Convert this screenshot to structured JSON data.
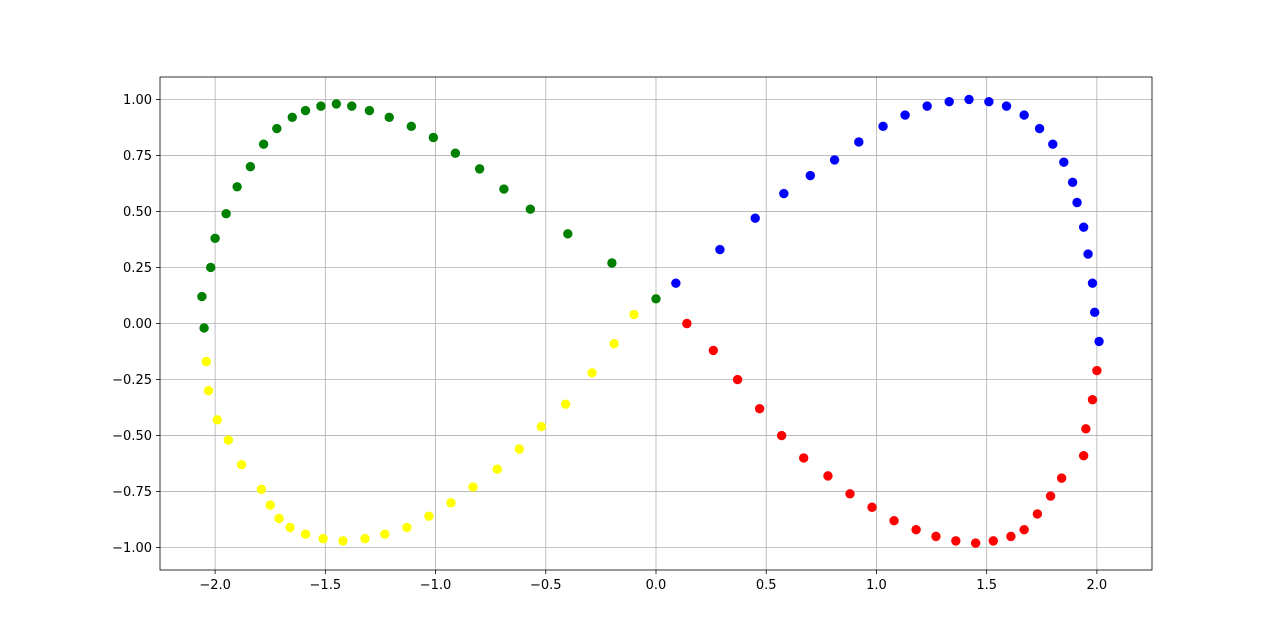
{
  "chart_data": {
    "type": "scatter",
    "title": "",
    "xlabel": "",
    "ylabel": "",
    "xlim": [
      -2.25,
      2.25
    ],
    "ylim": [
      -1.1,
      1.1
    ],
    "x_ticks": [
      -2.0,
      -1.5,
      -1.0,
      -0.5,
      0.0,
      0.5,
      1.0,
      1.5,
      2.0
    ],
    "x_tick_labels": [
      "−2.0",
      "−1.5",
      "−1.0",
      "−0.5",
      "0.0",
      "0.5",
      "1.0",
      "1.5",
      "2.0"
    ],
    "y_ticks": [
      1.0,
      0.75,
      0.5,
      0.25,
      0.0,
      -0.25,
      -0.5,
      -0.75,
      -1.0
    ],
    "y_tick_labels": [
      "1.00",
      "0.75",
      "0.50",
      "0.25",
      "0.00",
      "−0.25",
      "−0.50",
      "−0.75",
      "−1.00"
    ],
    "grid": true,
    "legend": "none",
    "series": [
      {
        "color": "#0000ff",
        "points": [
          [
            0.09,
            0.18
          ],
          [
            0.29,
            0.33
          ],
          [
            0.45,
            0.47
          ],
          [
            0.58,
            0.58
          ],
          [
            0.7,
            0.66
          ],
          [
            0.81,
            0.73
          ],
          [
            0.92,
            0.81
          ],
          [
            1.03,
            0.88
          ],
          [
            1.13,
            0.93
          ],
          [
            1.23,
            0.97
          ],
          [
            1.33,
            0.99
          ],
          [
            1.42,
            1.0
          ],
          [
            1.51,
            0.99
          ],
          [
            1.59,
            0.97
          ],
          [
            1.67,
            0.93
          ],
          [
            1.74,
            0.87
          ],
          [
            1.8,
            0.8
          ],
          [
            1.85,
            0.72
          ],
          [
            1.89,
            0.63
          ],
          [
            1.91,
            0.54
          ],
          [
            1.94,
            0.43
          ],
          [
            1.96,
            0.31
          ],
          [
            1.98,
            0.18
          ],
          [
            1.99,
            0.05
          ],
          [
            2.01,
            -0.08
          ]
        ]
      },
      {
        "color": "#ff0000",
        "points": [
          [
            0.14,
            0.0
          ],
          [
            0.26,
            -0.12
          ],
          [
            0.37,
            -0.25
          ],
          [
            0.47,
            -0.38
          ],
          [
            0.57,
            -0.5
          ],
          [
            0.67,
            -0.6
          ],
          [
            0.78,
            -0.68
          ],
          [
            0.88,
            -0.76
          ],
          [
            0.98,
            -0.82
          ],
          [
            1.08,
            -0.88
          ],
          [
            1.18,
            -0.92
          ],
          [
            1.27,
            -0.95
          ],
          [
            1.36,
            -0.97
          ],
          [
            1.45,
            -0.98
          ],
          [
            1.53,
            -0.97
          ],
          [
            1.61,
            -0.95
          ],
          [
            1.67,
            -0.92
          ],
          [
            1.73,
            -0.85
          ],
          [
            1.79,
            -0.77
          ],
          [
            1.84,
            -0.69
          ],
          [
            1.94,
            -0.59
          ],
          [
            1.95,
            -0.47
          ],
          [
            1.98,
            -0.34
          ],
          [
            2.0,
            -0.21
          ]
        ]
      },
      {
        "color": "#ffff00",
        "points": [
          [
            -0.1,
            0.04
          ],
          [
            -0.19,
            -0.09
          ],
          [
            -0.29,
            -0.22
          ],
          [
            -0.41,
            -0.36
          ],
          [
            -0.52,
            -0.46
          ],
          [
            -0.62,
            -0.56
          ],
          [
            -0.72,
            -0.65
          ],
          [
            -0.83,
            -0.73
          ],
          [
            -0.93,
            -0.8
          ],
          [
            -1.03,
            -0.86
          ],
          [
            -1.13,
            -0.91
          ],
          [
            -1.23,
            -0.94
          ],
          [
            -1.32,
            -0.96
          ],
          [
            -1.42,
            -0.97
          ],
          [
            -1.51,
            -0.96
          ],
          [
            -1.59,
            -0.94
          ],
          [
            -1.66,
            -0.91
          ],
          [
            -1.71,
            -0.87
          ],
          [
            -1.75,
            -0.81
          ],
          [
            -1.79,
            -0.74
          ],
          [
            -1.88,
            -0.63
          ],
          [
            -1.94,
            -0.52
          ],
          [
            -1.99,
            -0.43
          ],
          [
            -2.03,
            -0.3
          ],
          [
            -2.04,
            -0.17
          ]
        ]
      },
      {
        "color": "#008000",
        "points": [
          [
            -2.05,
            -0.02
          ],
          [
            -2.06,
            0.12
          ],
          [
            -2.02,
            0.25
          ],
          [
            -2.0,
            0.38
          ],
          [
            -1.95,
            0.49
          ],
          [
            -1.9,
            0.61
          ],
          [
            -1.84,
            0.7
          ],
          [
            -1.78,
            0.8
          ],
          [
            -1.72,
            0.87
          ],
          [
            -1.65,
            0.92
          ],
          [
            -1.59,
            0.95
          ],
          [
            -1.52,
            0.97
          ],
          [
            -1.45,
            0.98
          ],
          [
            -1.38,
            0.97
          ],
          [
            -1.3,
            0.95
          ],
          [
            -1.21,
            0.92
          ],
          [
            -1.11,
            0.88
          ],
          [
            -1.01,
            0.83
          ],
          [
            -0.91,
            0.76
          ],
          [
            -0.8,
            0.69
          ],
          [
            -0.69,
            0.6
          ],
          [
            -0.57,
            0.51
          ],
          [
            -0.4,
            0.4
          ],
          [
            -0.2,
            0.27
          ],
          [
            0.0,
            0.11
          ]
        ]
      }
    ]
  }
}
